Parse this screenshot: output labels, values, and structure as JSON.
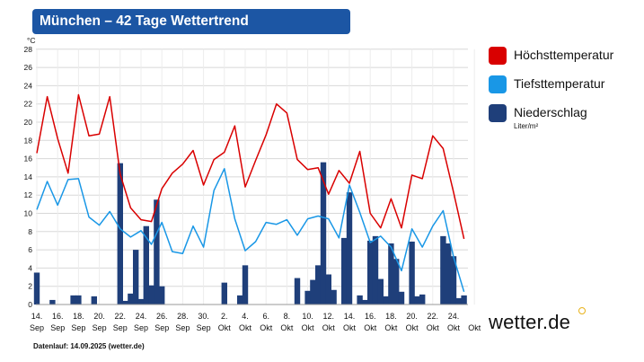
{
  "title": "München – 42 Tage Wettertrend",
  "brand": "wetter.de",
  "footer": "Datenlauf: 14.09.2025 (wetter.de)",
  "colors": {
    "max": "#d90000",
    "min": "#1997e6",
    "precip": "#1f3f7a",
    "title_bg": "#1c56a4",
    "grid": "#d8d8d8"
  },
  "legend": {
    "max_label": "Höchsttemperatur",
    "min_label": "Tiefsttemperatur",
    "precip_label": "Niederschlag",
    "precip_unit": "Liter/m²"
  },
  "chart_data": {
    "type": "line",
    "title": "München – 42 Tage Wettertrend",
    "ylabel": "°C",
    "ylim": [
      0,
      28
    ],
    "yticks": [
      0,
      2,
      4,
      6,
      8,
      10,
      12,
      14,
      16,
      18,
      20,
      22,
      24,
      26,
      28
    ],
    "grid": true,
    "legend_position": "right",
    "x_tick_labels": [
      {
        "day": "14.",
        "month": "Sep"
      },
      {
        "day": "16.",
        "month": "Sep"
      },
      {
        "day": "18.",
        "month": "Sep"
      },
      {
        "day": "20.",
        "month": "Sep"
      },
      {
        "day": "22.",
        "month": "Sep"
      },
      {
        "day": "24.",
        "month": "Sep"
      },
      {
        "day": "26.",
        "month": "Sep"
      },
      {
        "day": "28.",
        "month": "Sep"
      },
      {
        "day": "30.",
        "month": "Sep"
      },
      {
        "day": "2.",
        "month": "Okt"
      },
      {
        "day": "4.",
        "month": "Okt"
      },
      {
        "day": "6.",
        "month": "Okt"
      },
      {
        "day": "8.",
        "month": "Okt"
      },
      {
        "day": "10.",
        "month": "Okt"
      },
      {
        "day": "12.",
        "month": "Okt"
      },
      {
        "day": "14.",
        "month": "Okt"
      },
      {
        "day": "16.",
        "month": "Okt"
      },
      {
        "day": "18.",
        "month": "Okt"
      },
      {
        "day": "20.",
        "month": "Okt"
      },
      {
        "day": "22.",
        "month": "Okt"
      },
      {
        "day": "24.",
        "month": "Okt"
      },
      {
        "day": "",
        "month": "Okt"
      }
    ],
    "series": [
      {
        "name": "Höchsttemperatur",
        "kind": "line",
        "points": [
          [
            0,
            16.6
          ],
          [
            1,
            22.8
          ],
          [
            2,
            18.2
          ],
          [
            3,
            14.4
          ],
          [
            4,
            23.0
          ],
          [
            5,
            18.5
          ],
          [
            6,
            18.7
          ],
          [
            7,
            22.8
          ],
          [
            8,
            14.3
          ],
          [
            9,
            10.6
          ],
          [
            10,
            9.3
          ],
          [
            11,
            9.1
          ],
          [
            12,
            12.7
          ],
          [
            13,
            14.4
          ],
          [
            14,
            15.4
          ],
          [
            15,
            16.9
          ],
          [
            16,
            13.1
          ],
          [
            17,
            15.9
          ],
          [
            18,
            16.7
          ],
          [
            19,
            19.6
          ],
          [
            20,
            12.9
          ],
          [
            21,
            15.8
          ],
          [
            22,
            18.6
          ],
          [
            23,
            22.0
          ],
          [
            24,
            21.0
          ],
          [
            25,
            15.9
          ],
          [
            26,
            14.8
          ],
          [
            27,
            15.0
          ],
          [
            28,
            12.1
          ],
          [
            29,
            14.7
          ],
          [
            30,
            13.3
          ],
          [
            31,
            16.8
          ],
          [
            32,
            10.0
          ],
          [
            33,
            8.4
          ],
          [
            34,
            11.6
          ],
          [
            35,
            8.4
          ],
          [
            36,
            14.2
          ],
          [
            37,
            13.8
          ],
          [
            38,
            18.5
          ],
          [
            39,
            17.1
          ],
          [
            40,
            12.3
          ],
          [
            41,
            7.2
          ]
        ]
      },
      {
        "name": "Tiefsttemperatur",
        "kind": "line",
        "points": [
          [
            0,
            10.4
          ],
          [
            1,
            13.5
          ],
          [
            2,
            10.9
          ],
          [
            3,
            13.7
          ],
          [
            4,
            13.8
          ],
          [
            5,
            9.6
          ],
          [
            6,
            8.7
          ],
          [
            7,
            10.2
          ],
          [
            8,
            8.3
          ],
          [
            9,
            7.4
          ],
          [
            10,
            8.1
          ],
          [
            11,
            6.6
          ],
          [
            12,
            9.0
          ],
          [
            13,
            5.8
          ],
          [
            14,
            5.6
          ],
          [
            15,
            8.6
          ],
          [
            16,
            6.3
          ],
          [
            17,
            12.5
          ],
          [
            18,
            14.9
          ],
          [
            19,
            9.4
          ],
          [
            20,
            5.9
          ],
          [
            21,
            6.9
          ],
          [
            22,
            9.0
          ],
          [
            23,
            8.8
          ],
          [
            24,
            9.3
          ],
          [
            25,
            7.6
          ],
          [
            26,
            9.4
          ],
          [
            27,
            9.7
          ],
          [
            28,
            9.4
          ],
          [
            29,
            7.3
          ],
          [
            30,
            13.1
          ],
          [
            31,
            10.1
          ],
          [
            32,
            6.8
          ],
          [
            33,
            7.5
          ],
          [
            34,
            6.3
          ],
          [
            35,
            3.7
          ],
          [
            36,
            8.3
          ],
          [
            37,
            6.3
          ],
          [
            38,
            8.6
          ],
          [
            39,
            10.3
          ],
          [
            40,
            5.2
          ],
          [
            41,
            1.4
          ]
        ]
      },
      {
        "name": "Niederschlag",
        "kind": "bar",
        "unit": "Liter/m²",
        "points": [
          [
            0,
            3.5
          ],
          [
            1.5,
            0.5
          ],
          [
            3.5,
            1.0
          ],
          [
            4.0,
            1.0
          ],
          [
            5.5,
            0.9
          ],
          [
            8.0,
            15.5
          ],
          [
            8.5,
            0.4
          ],
          [
            9.0,
            1.2
          ],
          [
            9.5,
            6.0
          ],
          [
            10.0,
            0.6
          ],
          [
            10.5,
            8.6
          ],
          [
            11.0,
            2.1
          ],
          [
            11.5,
            11.5
          ],
          [
            12.0,
            2.0
          ],
          [
            18.0,
            2.4
          ],
          [
            19.5,
            1.0
          ],
          [
            20.0,
            4.3
          ],
          [
            25.0,
            2.9
          ],
          [
            26.0,
            1.5
          ],
          [
            26.5,
            2.7
          ],
          [
            27.0,
            4.3
          ],
          [
            27.5,
            15.6
          ],
          [
            28.0,
            3.3
          ],
          [
            28.5,
            1.6
          ],
          [
            29.5,
            7.3
          ],
          [
            30.0,
            12.3
          ],
          [
            31.0,
            1.0
          ],
          [
            31.5,
            0.5
          ],
          [
            32.0,
            7.0
          ],
          [
            32.5,
            7.5
          ],
          [
            33.0,
            2.8
          ],
          [
            33.5,
            0.9
          ],
          [
            34.0,
            6.7
          ],
          [
            34.5,
            5.0
          ],
          [
            35.0,
            1.4
          ],
          [
            36.0,
            6.9
          ],
          [
            36.5,
            0.9
          ],
          [
            37.0,
            1.1
          ],
          [
            39.0,
            7.5
          ],
          [
            39.5,
            6.7
          ],
          [
            40.0,
            5.3
          ],
          [
            40.5,
            0.7
          ],
          [
            41.0,
            1.0
          ]
        ]
      }
    ]
  }
}
